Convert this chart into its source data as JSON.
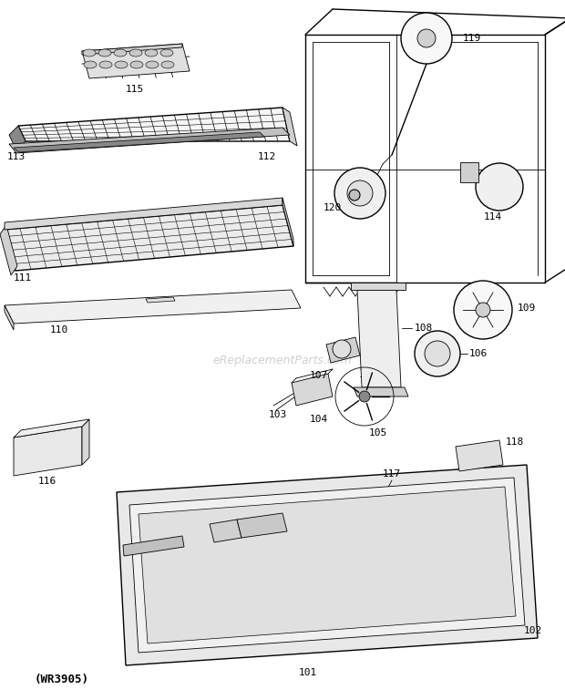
{
  "watermark": "eReplacementParts.com",
  "part_code": "(WR3905)",
  "bg": "#ffffff",
  "fig_width": 6.2,
  "fig_height": 7.68,
  "dpi": 100
}
